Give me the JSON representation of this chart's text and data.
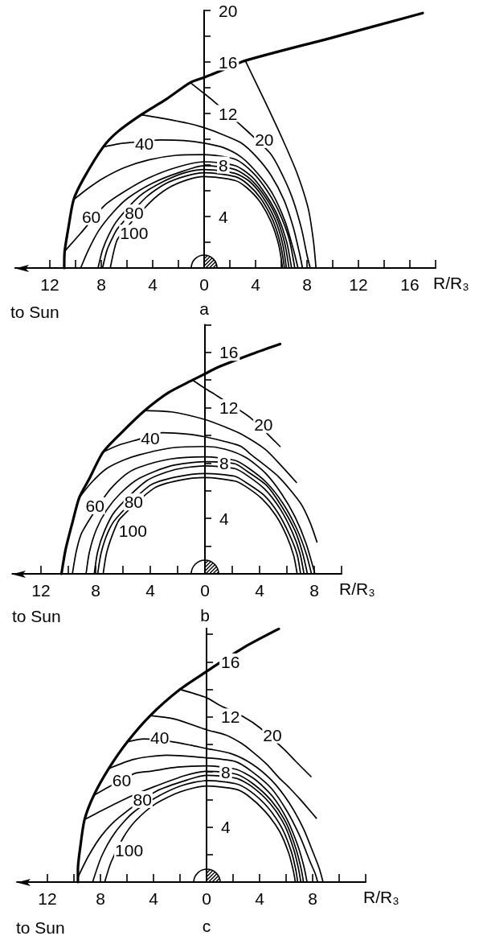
{
  "chart_data": [
    {
      "type": "line",
      "title": "a",
      "xlabel": "R/R₃",
      "annotations": [
        "to Sun"
      ],
      "xlim": [
        -14.7,
        18
      ],
      "ylim": [
        0,
        20
      ],
      "xticks": [
        {
          "value": -12,
          "label": "12"
        },
        {
          "value": -10,
          "label": null
        },
        {
          "value": -8,
          "label": "8"
        },
        {
          "value": -6,
          "label": null
        },
        {
          "value": -4,
          "label": "4"
        },
        {
          "value": -2,
          "label": null
        },
        0,
        {
          "value": 2,
          "label": null
        },
        4,
        {
          "value": 6,
          "label": null
        },
        8,
        {
          "value": 10,
          "label": null
        },
        12,
        {
          "value": 14,
          "label": null
        },
        16,
        {
          "value": 18,
          "label": null
        }
      ],
      "yticks": [
        {
          "value": 2,
          "label": null
        },
        4,
        {
          "value": 6,
          "label": null
        },
        8,
        {
          "value": 10,
          "label": null
        },
        12,
        {
          "value": 14,
          "label": null
        },
        16,
        {
          "value": 18,
          "label": null
        },
        20
      ],
      "marker": "none",
      "line_style": "solid",
      "series": [
        {
          "color": "#000000",
          "x": [
            -10.88,
            -10.85,
            -10.56,
            -10.15,
            -9.4,
            -7.85,
            -6.7,
            -4.9,
            -2.96,
            -1.08,
            0,
            0.9,
            3.2,
            10,
            17
          ],
          "values": [
            0,
            1.25,
            3.1,
            5.3,
            6.9,
            9.4,
            10.6,
            11.9,
            13.1,
            14.4,
            14.8,
            15.15,
            16.1,
            17.9,
            19.8
          ]
        },
        {
          "color": "#000000",
          "x": [
            3.2,
            4.75,
            6.1,
            7.25,
            8.1,
            8.5,
            8.7
          ],
          "values": [
            16.1,
            12.9,
            10,
            7.3,
            4.6,
            2.1,
            0
          ]
        },
        {
          "name": "20",
          "color": "#000000",
          "x": [
            -1.08,
            0.8,
            3.5,
            5.1,
            5.8,
            6.8,
            7.56,
            8,
            8.25
          ],
          "values": [
            14.4,
            12.9,
            10.5,
            8.95,
            7.8,
            5.6,
            3.1,
            1,
            0
          ]
        },
        {
          "color": "#000000",
          "x": [
            -4.9,
            -3.4,
            -1.3,
            0,
            1.6,
            2.9,
            4.1,
            5.2,
            6.2,
            6.95,
            7.45,
            7.65
          ],
          "values": [
            11.9,
            11.65,
            11.25,
            10.9,
            10.3,
            9.7,
            8.6,
            7.2,
            5.3,
            3.1,
            1,
            0
          ]
        },
        {
          "name": "40",
          "color": "#000000",
          "x": [
            -7.85,
            -6.6,
            -5.65,
            -3.4,
            -1.6,
            0,
            1.5,
            2.9,
            4.2,
            5.3,
            6.3,
            6.95,
            7.3
          ],
          "values": [
            9.4,
            9.65,
            9.75,
            9.95,
            9.9,
            9.7,
            9.35,
            8.6,
            7.3,
            5.8,
            3.6,
            1.4,
            0
          ]
        },
        {
          "color": "#000000",
          "x": [
            -10.15,
            -9,
            -7.8,
            -6.2,
            -4.3,
            -2.2,
            0,
            2.4,
            3.8,
            4.9,
            5.8,
            6.6,
            7.05
          ],
          "values": [
            5.3,
            6.2,
            7,
            7.8,
            8.4,
            8.75,
            8.8,
            8.45,
            7.4,
            6,
            4.4,
            2.3,
            0
          ]
        },
        {
          "name": "60",
          "color": "#000000",
          "x": [
            -10.8,
            -9.6,
            -7.7,
            -6.1,
            -4.3,
            -2.2,
            0,
            2.4,
            3.7,
            4.8,
            5.7,
            6.4,
            6.8
          ],
          "values": [
            1.35,
            2.7,
            4.9,
            6,
            7,
            7.8,
            8.25,
            7.95,
            7.1,
            5.7,
            4.1,
            2.1,
            0
          ]
        },
        {
          "color": "#000000",
          "x": [
            -9.6,
            -9,
            -8.2,
            -7.1,
            -5.9,
            -4,
            -2,
            0,
            2.4,
            3.6,
            4.7,
            5.6,
            6.25,
            6.6
          ],
          "values": [
            0,
            1.4,
            2.9,
            4.3,
            5.45,
            6.6,
            7.4,
            7.95,
            7.65,
            6.9,
            5.6,
            4,
            2,
            0
          ]
        },
        {
          "name": "80",
          "color": "#000000",
          "x": [
            -8.25,
            -7.9,
            -7.4,
            -6.75,
            -5,
            -3.2,
            -1.5,
            0,
            2.4,
            3.5,
            4.5,
            5.5,
            6.1,
            6.4
          ],
          "values": [
            0,
            1.4,
            2.6,
            3.7,
            5.6,
            6.7,
            7.4,
            7.65,
            7.35,
            6.75,
            5.6,
            3.8,
            1.9,
            0
          ]
        },
        {
          "color": "#000000",
          "x": [
            -7.9,
            -7.55,
            -7,
            -6.7,
            -4.5,
            -3,
            -1.4,
            0,
            2.4,
            3.4,
            4.4,
            5.35,
            5.95,
            6.25
          ],
          "values": [
            0,
            1.4,
            2.6,
            3.1,
            5.5,
            6.55,
            7.15,
            7.4,
            7.1,
            6.5,
            5.4,
            3.7,
            1.8,
            0
          ]
        },
        {
          "name": "100",
          "color": "#000000",
          "x": [
            -7.3,
            -7,
            -6.7,
            -4.2,
            -2.8,
            -1.3,
            0,
            2.4,
            3.3,
            4.3,
            5.2,
            5.8,
            6.1
          ],
          "values": [
            0,
            1.4,
            2.3,
            5.1,
            6.2,
            6.85,
            7.1,
            6.8,
            6.25,
            5.2,
            3.6,
            1.8,
            0
          ]
        }
      ]
    },
    {
      "type": "line",
      "title": "b",
      "xlabel": "R/R₃",
      "annotations": [
        "to Sun"
      ],
      "xlim": [
        -14.1,
        10
      ],
      "ylim": [
        0,
        18
      ],
      "xticks": [
        {
          "value": -12,
          "label": "12"
        },
        {
          "value": -10,
          "label": null
        },
        {
          "value": -8,
          "label": "8"
        },
        {
          "value": -6,
          "label": null
        },
        {
          "value": -4,
          "label": "4"
        },
        {
          "value": -2,
          "label": null
        },
        0,
        {
          "value": 2,
          "label": null
        },
        4,
        {
          "value": 6,
          "label": null
        },
        8,
        {
          "value": 10,
          "label": null
        }
      ],
      "yticks": [
        {
          "value": 2,
          "label": null
        },
        4,
        {
          "value": 6,
          "label": null
        },
        8,
        {
          "value": 10,
          "label": null
        },
        12,
        {
          "value": 14,
          "label": null
        },
        16,
        {
          "value": 18,
          "label": null
        }
      ],
      "marker": "none",
      "line_style": "solid",
      "series": [
        {
          "color": "#000000",
          "x": [
            -10.5,
            -10.2,
            -9.7,
            -9.2,
            -8.5,
            -7.45,
            -6,
            -4.4,
            -2.65,
            -0.9,
            0,
            0.9,
            3.5,
            5.5
          ],
          "values": [
            0,
            1.75,
            3.7,
            5.5,
            6.8,
            8.8,
            10.3,
            11.8,
            13.1,
            14,
            14.45,
            14.9,
            15.9,
            16.6
          ]
        },
        {
          "name": "20",
          "color": "#000000",
          "x": [
            -0.9,
            0,
            0.9,
            3.3,
            5.15,
            5.5
          ],
          "values": [
            14,
            13.4,
            12.85,
            11.3,
            9.55,
            9.2
          ]
        },
        {
          "color": "#000000",
          "x": [
            -4.4,
            -2.45,
            0,
            1.5,
            2.65,
            4.4,
            5.6,
            6.7
          ],
          "values": [
            11.8,
            11.7,
            11.15,
            10.6,
            10.1,
            9,
            7.8,
            6.6
          ]
        },
        {
          "name": "40",
          "color": "#000000",
          "x": [
            -7.45,
            -6.3,
            -4.9,
            -3.1,
            -1.3,
            0,
            1.5,
            2.65,
            3.4,
            5.4,
            7,
            7.7,
            8.2
          ],
          "values": [
            8.8,
            9.3,
            9.7,
            10.2,
            10.1,
            9.9,
            9.55,
            9.2,
            8.6,
            7,
            5.1,
            3.7,
            2.3
          ]
        },
        {
          "color": "#000000",
          "x": [
            -9.2,
            -8.3,
            -7.2,
            -6,
            -4.8,
            -2.45,
            0,
            1.5,
            3,
            4.4,
            5.6,
            6.6,
            7.4,
            8.05
          ],
          "values": [
            5.5,
            6.6,
            7.6,
            8.2,
            8.6,
            9.1,
            9.2,
            9,
            8.4,
            7.3,
            5.8,
            4.1,
            2.2,
            0
          ]
        },
        {
          "name": "60",
          "color": "#000000",
          "x": [
            -9.7,
            -9.4,
            -9,
            -7.1,
            -5.9,
            -4.8,
            -2.5,
            0,
            2.2,
            3.1,
            4.5,
            5.7,
            6.7,
            7.4,
            7.8
          ],
          "values": [
            0,
            1.7,
            3,
            5.9,
            7.1,
            7.7,
            8.3,
            8.45,
            8.2,
            7.7,
            6.6,
            5.1,
            3.3,
            1.5,
            0
          ]
        },
        {
          "color": "#000000",
          "x": [
            -8.7,
            -8.45,
            -7.95,
            -7.2,
            -6.2,
            -4.8,
            -2.5,
            0,
            2.2,
            3.1,
            4.5,
            5.6,
            6.6,
            7.15,
            7.5
          ],
          "values": [
            0,
            1.6,
            3.2,
            4.6,
            5.8,
            6.9,
            7.8,
            8.1,
            7.95,
            7.4,
            6.4,
            4.9,
            3.1,
            1.5,
            0
          ]
        },
        {
          "name": "80",
          "color": "#000000",
          "x": [
            -8.1,
            -7.85,
            -7.35,
            -6.6,
            -4.3,
            -2.3,
            0,
            2.2,
            3.1,
            4.4,
            5.5,
            6.4,
            6.95,
            7.25
          ],
          "values": [
            0,
            1.6,
            3.1,
            4.5,
            6.7,
            7.5,
            7.8,
            7.6,
            7.1,
            6.1,
            4.7,
            3,
            1.5,
            0
          ]
        },
        {
          "color": "#000000",
          "x": [
            -7.85,
            -7.6,
            -7.1,
            -6.5,
            -4,
            -2.1,
            0,
            2.2,
            3,
            4.3,
            5.35,
            6.2,
            6.75,
            7
          ],
          "values": [
            0,
            1.5,
            3,
            4,
            6.4,
            7,
            7.25,
            7.05,
            6.6,
            5.7,
            4.4,
            2.8,
            1.4,
            0
          ]
        },
        {
          "name": "100",
          "color": "#000000",
          "x": [
            -7.45,
            -7.2,
            -6.7,
            -6.2,
            -3.7,
            -1.9,
            0,
            2.2,
            3,
            4.2,
            5.2,
            6,
            6.5,
            6.75
          ],
          "values": [
            0,
            1.5,
            3,
            4,
            6.2,
            6.75,
            6.95,
            6.7,
            6.3,
            5.4,
            4.2,
            2.7,
            1.3,
            0
          ]
        }
      ]
    },
    {
      "type": "line",
      "title": "c",
      "xlabel": "R/R₃",
      "annotations": [
        "to Sun"
      ],
      "xlim": [
        -14.3,
        12
      ],
      "ylim": [
        0,
        18.5
      ],
      "xticks": [
        {
          "value": -12,
          "label": "12"
        },
        {
          "value": -10,
          "label": null
        },
        {
          "value": -8,
          "label": "8"
        },
        {
          "value": -6,
          "label": null
        },
        {
          "value": -4,
          "label": "4"
        },
        {
          "value": -2,
          "label": null
        },
        0,
        {
          "value": 2,
          "label": null
        },
        4,
        {
          "value": 6,
          "label": null
        },
        8,
        {
          "value": 10,
          "label": null
        },
        {
          "value": 12,
          "label": null
        }
      ],
      "yticks": [
        {
          "value": 2,
          "label": null
        },
        4,
        {
          "value": 6,
          "label": null
        },
        8,
        {
          "value": 10,
          "label": null
        },
        12,
        {
          "value": 14,
          "label": null
        },
        16,
        {
          "value": 18,
          "label": null
        }
      ],
      "marker": "none",
      "line_style": "solid",
      "series": [
        {
          "color": "#000000",
          "x": [
            -9.7,
            -9.7,
            -9.5,
            -9.2,
            -8.5,
            -7.37,
            -5.96,
            -4.24,
            -2,
            0,
            0.7,
            2.9,
            5.45
          ],
          "values": [
            0,
            0.94,
            2.7,
            4.54,
            6.3,
            8.25,
            10.2,
            12.1,
            14,
            15.3,
            15.75,
            17.1,
            18.4
          ]
        },
        {
          "name": "20",
          "color": "#000000",
          "x": [
            -2,
            0,
            0.9,
            2.8,
            4.04,
            5.9,
            6.7,
            7.88
          ],
          "values": [
            14,
            13.4,
            12.9,
            12,
            11.2,
            9.6,
            8.8,
            7.66
          ]
        },
        {
          "color": "#000000",
          "x": [
            -4.24,
            -2.42,
            0,
            1.41,
            2.6,
            3.43,
            4.5,
            5.45,
            6.3,
            7.07,
            7.7,
            8.28
          ],
          "values": [
            12.1,
            11.85,
            11.07,
            10.7,
            10.1,
            9.5,
            8.6,
            7.6,
            6.8,
            6,
            5.3,
            4.64
          ]
        },
        {
          "name": "40",
          "color": "#000000",
          "x": [
            -5.96,
            -4.7,
            -2.6,
            -1.2,
            0,
            1.8,
            3.4,
            4.9,
            6.2,
            7.3,
            8.1,
            8.5,
            8.79
          ],
          "values": [
            10.2,
            10.4,
            10.2,
            9.95,
            9.7,
            9.35,
            8.6,
            7.4,
            5.8,
            3.9,
            2,
            1,
            0
          ]
        },
        {
          "color": "#000000",
          "x": [
            -7.37,
            -5.45,
            -3.03,
            0,
            2.2,
            3.4,
            4.9,
            6.1,
            7.1,
            7.8,
            8.2,
            8.38
          ],
          "values": [
            8.25,
            8.93,
            9.22,
            9.03,
            8.75,
            8.05,
            6.8,
            5.1,
            3.2,
            1.5,
            0.6,
            0
          ]
        },
        {
          "name": "60",
          "color": "#000000",
          "x": [
            -8.5,
            -7.4,
            -5.4,
            -4.24,
            -2.2,
            0,
            2.2,
            3.6,
            5,
            6.1,
            6.9,
            7.35,
            7.58
          ],
          "values": [
            6.3,
            6.9,
            7.9,
            8.05,
            8.35,
            8.44,
            8.2,
            7.5,
            6.2,
            4.5,
            2.6,
            1.1,
            0
          ]
        },
        {
          "color": "#000000",
          "x": [
            -9.2,
            -8.1,
            -7.07,
            -5.8,
            -3.9,
            -1.6,
            0,
            2.2,
            3.5,
            4.9,
            6,
            6.75,
            7.15,
            7.31
          ],
          "values": [
            4.54,
            5.1,
            5.6,
            6.2,
            6.95,
            7.75,
            8.05,
            7.85,
            7.15,
            5.9,
            4.3,
            2.4,
            0.9,
            0
          ]
        },
        {
          "name": "80",
          "color": "#000000",
          "x": [
            -9.7,
            -8.9,
            -7.9,
            -6.6,
            -3.8,
            -1.2,
            0,
            2.2,
            3.4,
            4.8,
            5.9,
            6.6,
            6.95,
            7.11
          ],
          "values": [
            0.35,
            1.9,
            3.4,
            4.7,
            6.6,
            7.5,
            7.76,
            7.55,
            6.95,
            5.7,
            4.1,
            2.3,
            0.9,
            0
          ]
        },
        {
          "color": "#000000",
          "x": [
            -8.59,
            -7.9,
            -6.9,
            -5.6,
            -3.9,
            -1.9,
            0,
            2.2,
            3.3,
            4.6,
            5.7,
            6.4,
            6.75,
            6.87
          ],
          "values": [
            0,
            1.9,
            3.6,
            5,
            6.1,
            7,
            7.37,
            7.15,
            6.6,
            5.45,
            3.9,
            2.2,
            0.8,
            0
          ]
        },
        {
          "name": "100",
          "color": "#000000",
          "x": [
            -7.68,
            -7.2,
            -6.3,
            -5.4,
            -3.9,
            -2,
            0,
            2.2,
            3.1,
            4.4,
            5.5,
            6.2,
            6.55,
            6.7
          ],
          "values": [
            0,
            1.45,
            3.2,
            4.4,
            5.65,
            6.55,
            6.98,
            6.75,
            6.3,
            5.15,
            3.7,
            2.1,
            0.8,
            0
          ]
        }
      ]
    }
  ]
}
